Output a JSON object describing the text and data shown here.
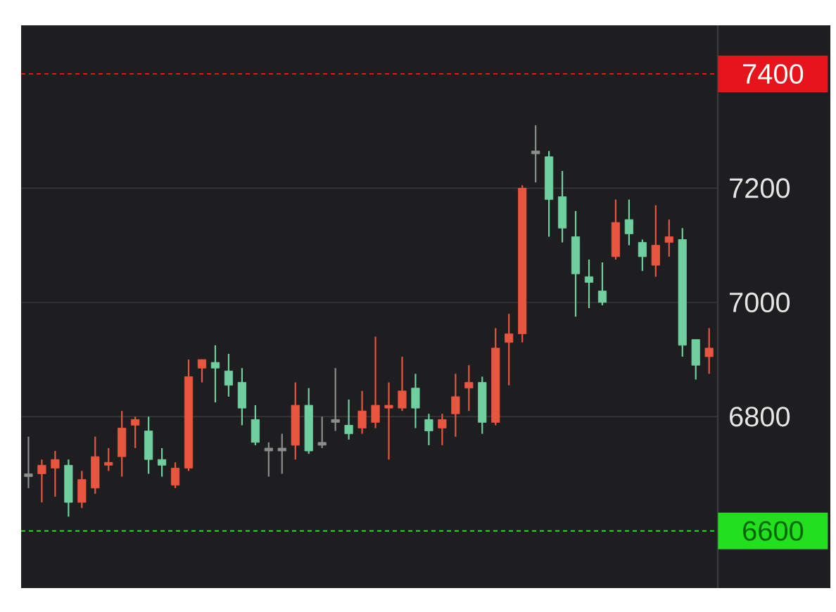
{
  "chart_data": {
    "type": "candlestick",
    "categories": [
      null,
      null,
      null,
      null,
      null,
      null,
      null,
      null,
      null,
      null,
      null,
      null,
      null,
      null,
      null,
      null,
      null,
      null,
      null,
      null,
      null,
      null,
      null,
      null,
      null,
      null,
      null,
      null,
      null,
      null,
      null,
      null,
      null,
      null,
      null,
      null,
      null,
      null,
      null,
      null,
      null,
      null,
      null,
      null,
      null,
      null,
      null,
      null,
      null,
      null,
      null,
      null
    ],
    "ohlc": [
      [
        6700,
        6765,
        6675,
        6695
      ],
      [
        6700,
        6725,
        6650,
        6715
      ],
      [
        6710,
        6740,
        6660,
        6725
      ],
      [
        6715,
        6725,
        6625,
        6650
      ],
      [
        6650,
        6705,
        6640,
        6690
      ],
      [
        6675,
        6765,
        6665,
        6730
      ],
      [
        6715,
        6745,
        6705,
        6720
      ],
      [
        6730,
        6810,
        6695,
        6780
      ],
      [
        6785,
        6800,
        6745,
        6795
      ],
      [
        6775,
        6800,
        6700,
        6725
      ],
      [
        6725,
        6745,
        6695,
        6715
      ],
      [
        6680,
        6720,
        6675,
        6710
      ],
      [
        6710,
        6900,
        6705,
        6870
      ],
      [
        6885,
        6900,
        6860,
        6900
      ],
      [
        6895,
        6925,
        6825,
        6885
      ],
      [
        6880,
        6910,
        6835,
        6855
      ],
      [
        6860,
        6885,
        6785,
        6815
      ],
      [
        6795,
        6820,
        6750,
        6755
      ],
      [
        6745,
        6755,
        6695,
        6740
      ],
      [
        6745,
        6770,
        6700,
        6740
      ],
      [
        6750,
        6860,
        6725,
        6820
      ],
      [
        6820,
        6850,
        6735,
        6740
      ],
      [
        6755,
        6800,
        6745,
        6750
      ],
      [
        6795,
        6885,
        6775,
        6790
      ],
      [
        6785,
        6830,
        6760,
        6770
      ],
      [
        6780,
        6845,
        6770,
        6810
      ],
      [
        6790,
        6940,
        6780,
        6820
      ],
      [
        6815,
        6860,
        6725,
        6820
      ],
      [
        6815,
        6905,
        6810,
        6845
      ],
      [
        6850,
        6875,
        6780,
        6815
      ],
      [
        6795,
        6805,
        6750,
        6775
      ],
      [
        6780,
        6805,
        6750,
        6795
      ],
      [
        6805,
        6875,
        6765,
        6835
      ],
      [
        6850,
        6890,
        6810,
        6860
      ],
      [
        6860,
        6870,
        6770,
        6790
      ],
      [
        6790,
        6955,
        6785,
        6920
      ],
      [
        6930,
        6980,
        6855,
        6945
      ],
      [
        6945,
        7205,
        6930,
        7200
      ],
      [
        7265,
        7310,
        7210,
        7260
      ],
      [
        7255,
        7265,
        7115,
        7180
      ],
      [
        7185,
        7230,
        7105,
        7130
      ],
      [
        7115,
        7160,
        6975,
        7050
      ],
      [
        7045,
        7075,
        6990,
        7035
      ],
      [
        7020,
        7070,
        6995,
        7000
      ],
      [
        7080,
        7180,
        7075,
        7140
      ],
      [
        7145,
        7180,
        7100,
        7120
      ],
      [
        7105,
        7110,
        7055,
        7080
      ],
      [
        7065,
        7170,
        7045,
        7100
      ],
      [
        7105,
        7145,
        7080,
        7115
      ],
      [
        7110,
        7130,
        6905,
        6925
      ],
      [
        6935,
        6935,
        6865,
        6890
      ],
      [
        6905,
        6955,
        6875,
        6920
      ]
    ],
    "colors": [
      "#8a8f8c",
      "#e8563f",
      "#e8563f",
      "#6fcf9f",
      "#e8563f",
      "#e8563f",
      "#e8563f",
      "#e8563f",
      "#e8563f",
      "#6fcf9f",
      "#6fcf9f",
      "#e8563f",
      "#e8563f",
      "#e8563f",
      "#6fcf9f",
      "#6fcf9f",
      "#6fcf9f",
      "#6fcf9f",
      "#8a8f8c",
      "#8a8f8c",
      "#e8563f",
      "#6fcf9f",
      "#8a8f8c",
      "#8a8f8c",
      "#6fcf9f",
      "#e8563f",
      "#e8563f",
      "#e8563f",
      "#e8563f",
      "#6fcf9f",
      "#6fcf9f",
      "#e8563f",
      "#e8563f",
      "#e8563f",
      "#6fcf9f",
      "#e8563f",
      "#e8563f",
      "#e8563f",
      "#8a8f8c",
      "#6fcf9f",
      "#6fcf9f",
      "#6fcf9f",
      "#6fcf9f",
      "#6fcf9f",
      "#e8563f",
      "#6fcf9f",
      "#6fcf9f",
      "#e8563f",
      "#e8563f",
      "#6fcf9f",
      "#6fcf9f",
      "#e8563f"
    ],
    "ylim": [
      6500,
      7485
    ],
    "yticks": [
      6800,
      7000,
      7200
    ],
    "grid": "y",
    "ref_lines": [
      {
        "axis": "y",
        "value": 7400,
        "label": "7400",
        "color": "#e8141c",
        "line_style": "dashed"
      },
      {
        "axis": "y",
        "value": 6600,
        "label": "6600",
        "color": "#22e01e",
        "line_style": "dashed"
      }
    ]
  }
}
